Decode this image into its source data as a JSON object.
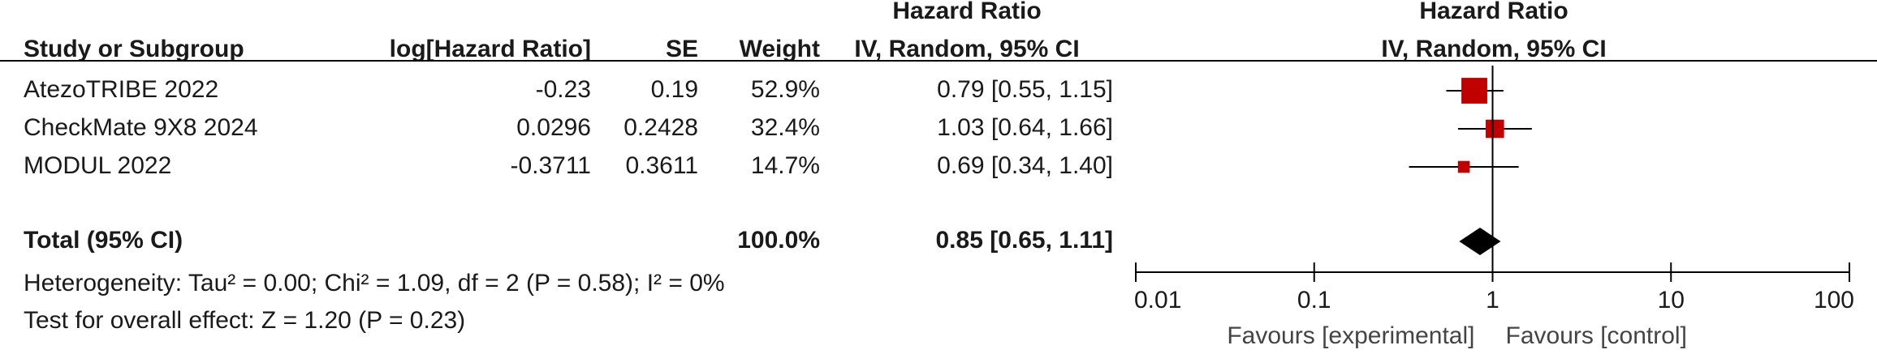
{
  "chart_data": {
    "type": "forest",
    "headers": {
      "study": "Study or Subgroup",
      "log_hr": "log[Hazard Ratio]",
      "se": "SE",
      "weight": "Weight",
      "hr_title": "Hazard Ratio",
      "hr_method": "IV, Random, 95% CI",
      "plot_title": "Hazard Ratio",
      "plot_method": "IV, Random, 95% CI"
    },
    "studies": [
      {
        "name": "AtezoTRIBE 2022",
        "log_hr": -0.23,
        "se": 0.19,
        "weight": {
          "value": 52.9,
          "label": "52.9%"
        },
        "hr": 0.79,
        "ci_low": 0.55,
        "ci_high": 1.15,
        "hr_label": "0.79 [0.55, 1.15]"
      },
      {
        "name": "CheckMate 9X8 2024",
        "log_hr": 0.0296,
        "se": 0.2428,
        "weight": {
          "value": 32.4,
          "label": "32.4%"
        },
        "hr": 1.03,
        "ci_low": 0.64,
        "ci_high": 1.66,
        "hr_label": "1.03 [0.64, 1.66]"
      },
      {
        "name": "MODUL 2022",
        "log_hr": -0.3711,
        "se": 0.3611,
        "weight": {
          "value": 14.7,
          "label": "14.7%"
        },
        "hr": 0.69,
        "ci_low": 0.34,
        "ci_high": 1.4,
        "hr_label": "0.69 [0.34, 1.40]"
      }
    ],
    "total": {
      "name": "Total (95% CI)",
      "weight": {
        "value": 100,
        "label": "100.0%"
      },
      "hr": 0.85,
      "ci_low": 0.65,
      "ci_high": 1.11,
      "hr_label": "0.85 [0.65, 1.11]"
    },
    "heterogeneity": "Heterogeneity: Tau² = 0.00; Chi² = 1.09, df = 2 (P = 0.58); I² = 0%",
    "overall_effect": "Test for overall effect: Z = 1.20 (P = 0.23)",
    "x_scale": "log",
    "xlim": [
      0.01,
      100
    ],
    "xticks": [
      0.01,
      0.1,
      1,
      10,
      100
    ],
    "null_line": 1,
    "favours_left": "Favours [experimental]",
    "favours_right": "Favours [control]",
    "square_color": "#c00000",
    "diamond_color": "#000000"
  }
}
